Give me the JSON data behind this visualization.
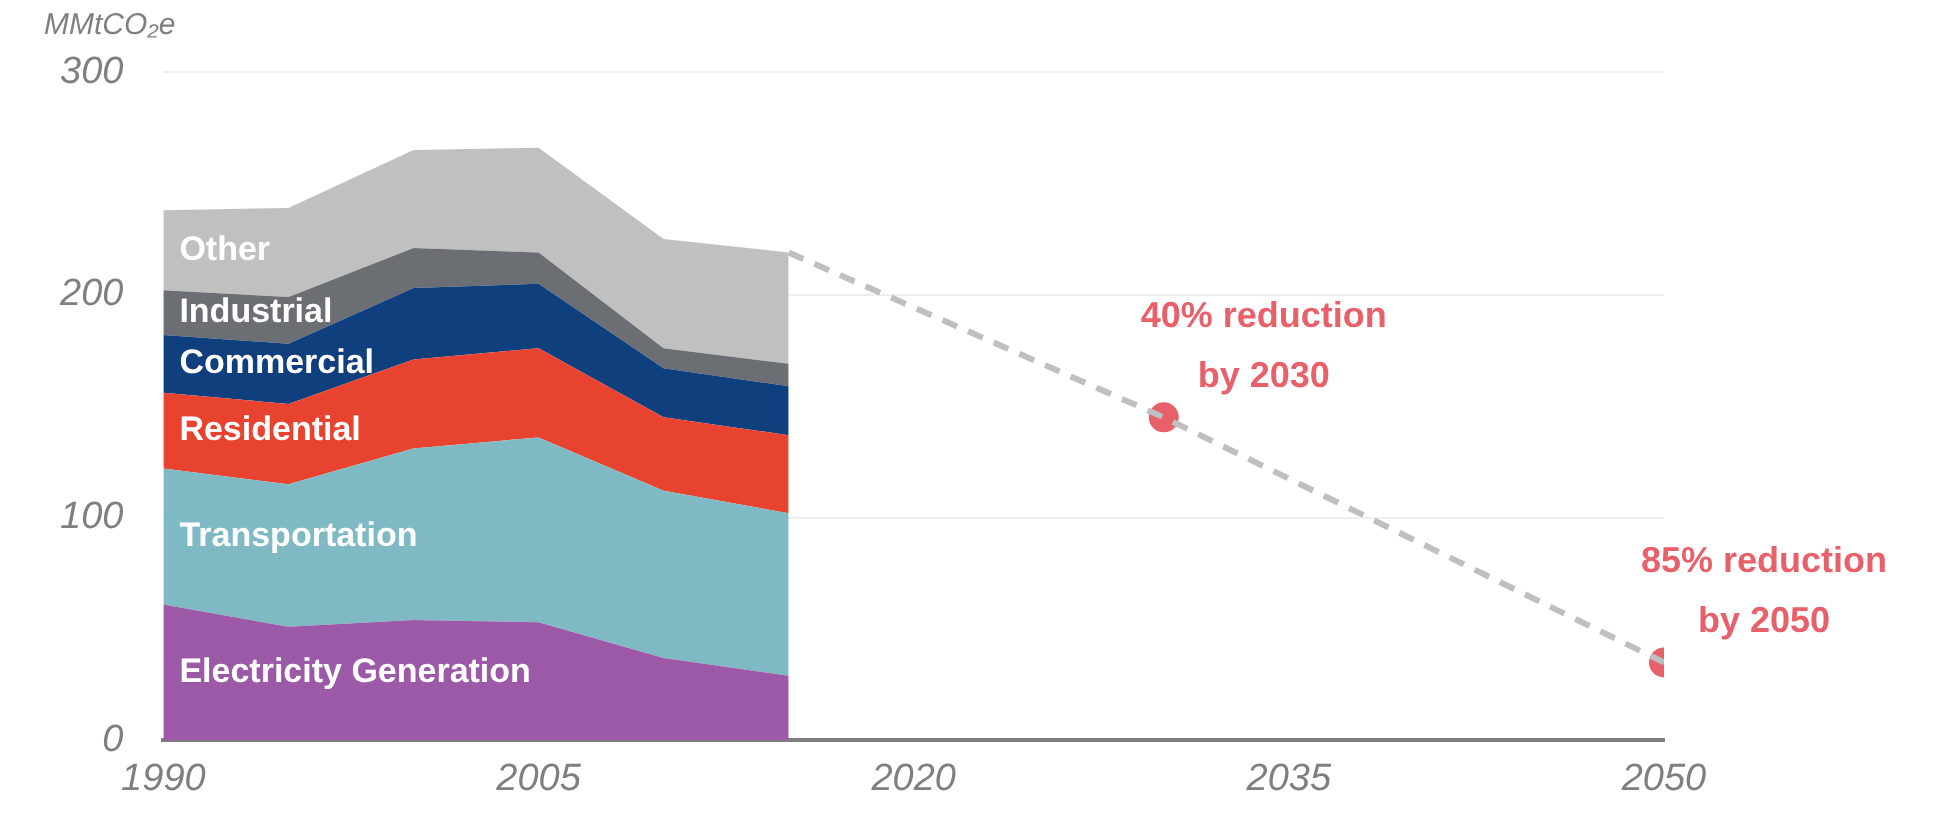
{
  "chart_data": {
    "type": "area",
    "stacked": true,
    "ylabel": "MMtCO₂e",
    "x": [
      1990,
      1995,
      2000,
      2005,
      2010,
      2015
    ],
    "series": [
      {
        "name": "Electricity Generation",
        "color": "#9b59a8",
        "values": [
          61,
          51,
          54,
          53,
          37,
          29
        ]
      },
      {
        "name": "Transportation",
        "color": "#7fbac4",
        "values": [
          61,
          64,
          77,
          83,
          75,
          73
        ]
      },
      {
        "name": "Residential",
        "color": "#e8432e",
        "values": [
          34,
          36,
          40,
          40,
          33,
          35
        ]
      },
      {
        "name": "Commercial",
        "color": "#0f3f7c",
        "values": [
          26,
          27,
          32,
          29,
          22,
          22
        ]
      },
      {
        "name": "Industrial",
        "color": "#6b6e73",
        "values": [
          20,
          21,
          18,
          14,
          9,
          10
        ]
      },
      {
        "name": "Other",
        "color": "#c0c0c0",
        "values": [
          36,
          40,
          44,
          47,
          49,
          50
        ]
      },
      {
        "type": "line",
        "x": [
          2015,
          2030,
          2050
        ],
        "values": [
          219,
          145,
          35
        ],
        "color": "#bfbfbf",
        "line_style": "dashed",
        "marker": "none"
      },
      {
        "type": "scatter",
        "x": [
          2030,
          2050
        ],
        "values": [
          145,
          35
        ],
        "color": "#e8606a",
        "marker": "circle"
      }
    ],
    "xlim": [
      1990,
      2050
    ],
    "xticks": [
      1990,
      2005,
      2020,
      2035,
      2050
    ],
    "ylim": [
      0,
      300
    ],
    "yticks": [
      0,
      100,
      200,
      300
    ],
    "grid": "y",
    "legend": false,
    "annotations": [
      {
        "text": "40% reduction\nby 2030",
        "x": 2030,
        "y": 145
      },
      {
        "text": "85% reduction\nby 2050",
        "x": 2050,
        "y": 35
      }
    ]
  }
}
